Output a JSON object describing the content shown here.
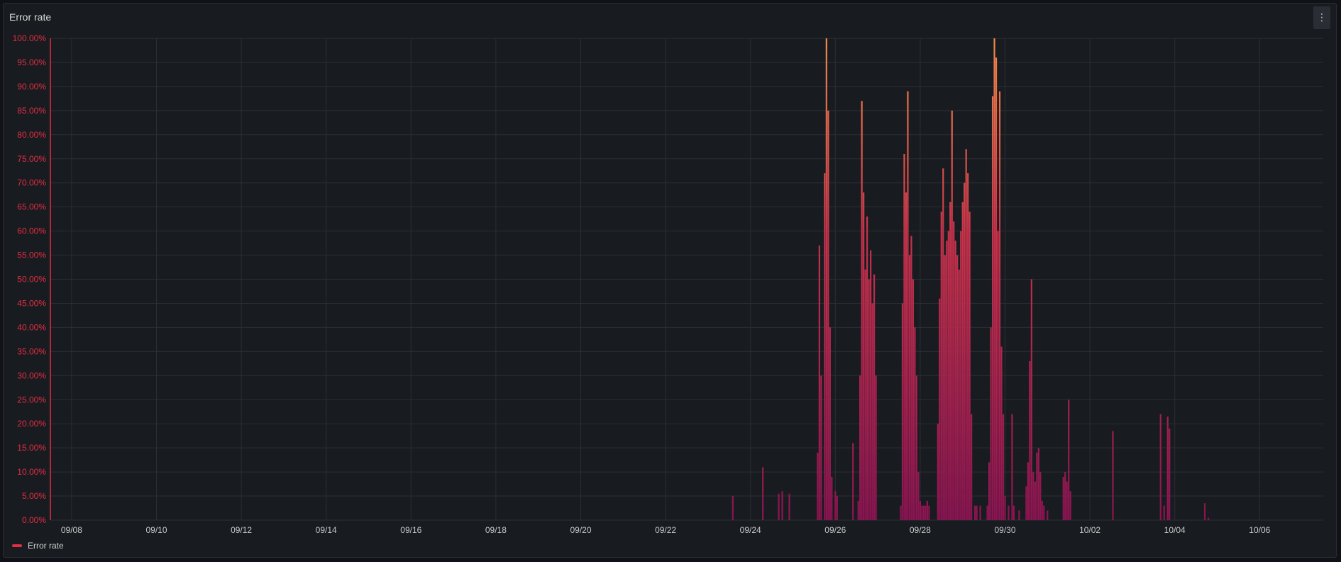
{
  "panel": {
    "title": "Error rate",
    "menu_icon": "kebab-menu-icon"
  },
  "legend": {
    "label": "Error rate",
    "color": "#e02f44"
  },
  "colors": {
    "axis_red": "#e02f44",
    "bar_low": "#8b1452",
    "bar_mid": "#c8334b",
    "bar_high": "#f58a4a",
    "grid": "#2b2f36"
  },
  "chart_data": {
    "type": "bar",
    "title": "Error rate",
    "xlabel": "",
    "ylabel": "",
    "x_unit": "days",
    "xlim": [
      "09/07 12:00",
      "10/07 12:00"
    ],
    "x_ticks": [
      "09/08",
      "09/10",
      "09/12",
      "09/14",
      "09/16",
      "09/18",
      "09/20",
      "09/22",
      "09/24",
      "09/26",
      "09/28",
      "09/30",
      "10/02",
      "10/04",
      "10/06"
    ],
    "y_ticks": [
      "0.00%",
      "5.00%",
      "10.00%",
      "15.00%",
      "20.00%",
      "25.00%",
      "30.00%",
      "35.00%",
      "40.00%",
      "45.00%",
      "50.00%",
      "55.00%",
      "60.00%",
      "65.00%",
      "70.00%",
      "75.00%",
      "80.00%",
      "85.00%",
      "90.00%",
      "95.00%",
      "100.00%"
    ],
    "ylim": [
      0,
      100
    ],
    "grid": true,
    "legend_position": "bottom-left",
    "series": [
      {
        "name": "Error rate",
        "points": [
          [
            "09/23 14:00",
            5
          ],
          [
            "09/24 07:00",
            11
          ],
          [
            "09/24 16:00",
            5.5
          ],
          [
            "09/24 18:00",
            6
          ],
          [
            "09/24 22:00",
            5.5
          ],
          [
            "09/25 14:00",
            14
          ],
          [
            "09/25 15:00",
            57
          ],
          [
            "09/25 16:00",
            30
          ],
          [
            "09/25 18:00",
            72
          ],
          [
            "09/25 19:00",
            100
          ],
          [
            "09/25 20:00",
            85
          ],
          [
            "09/25 21:00",
            40
          ],
          [
            "09/25 22:00",
            9
          ],
          [
            "09/26 00:00",
            6
          ],
          [
            "09/26 01:00",
            5
          ],
          [
            "09/26 10:00",
            16
          ],
          [
            "09/26 13:00",
            4
          ],
          [
            "09/26 14:00",
            30
          ],
          [
            "09/26 15:00",
            87
          ],
          [
            "09/26 16:00",
            68
          ],
          [
            "09/26 17:00",
            52
          ],
          [
            "09/26 18:00",
            63
          ],
          [
            "09/26 19:00",
            50
          ],
          [
            "09/26 20:00",
            56
          ],
          [
            "09/26 21:00",
            45
          ],
          [
            "09/26 22:00",
            51
          ],
          [
            "09/26 23:00",
            30
          ],
          [
            "09/27 13:00",
            3
          ],
          [
            "09/27 14:00",
            45
          ],
          [
            "09/27 15:00",
            76
          ],
          [
            "09/27 16:00",
            68
          ],
          [
            "09/27 17:00",
            89
          ],
          [
            "09/27 18:00",
            55
          ],
          [
            "09/27 19:00",
            59
          ],
          [
            "09/27 20:00",
            50
          ],
          [
            "09/27 21:00",
            40
          ],
          [
            "09/27 22:00",
            30
          ],
          [
            "09/27 23:00",
            10
          ],
          [
            "09/28 00:00",
            4
          ],
          [
            "09/28 01:00",
            3
          ],
          [
            "09/28 02:00",
            3
          ],
          [
            "09/28 03:00",
            3
          ],
          [
            "09/28 04:00",
            4
          ],
          [
            "09/28 05:00",
            3
          ],
          [
            "09/28 10:00",
            20
          ],
          [
            "09/28 11:00",
            46
          ],
          [
            "09/28 12:00",
            64
          ],
          [
            "09/28 13:00",
            73
          ],
          [
            "09/28 14:00",
            55
          ],
          [
            "09/28 15:00",
            58
          ],
          [
            "09/28 16:00",
            60
          ],
          [
            "09/28 17:00",
            66
          ],
          [
            "09/28 18:00",
            85
          ],
          [
            "09/28 19:00",
            62
          ],
          [
            "09/28 20:00",
            58
          ],
          [
            "09/28 21:00",
            55
          ],
          [
            "09/28 22:00",
            52
          ],
          [
            "09/28 23:00",
            60
          ],
          [
            "09/29 00:00",
            66
          ],
          [
            "09/29 01:00",
            70
          ],
          [
            "09/29 02:00",
            77
          ],
          [
            "09/29 03:00",
            72
          ],
          [
            "09/29 04:00",
            64
          ],
          [
            "09/29 05:00",
            22
          ],
          [
            "09/29 07:00",
            3
          ],
          [
            "09/29 08:00",
            3
          ],
          [
            "09/29 10:00",
            3
          ],
          [
            "09/29 14:00",
            3
          ],
          [
            "09/29 15:00",
            12
          ],
          [
            "09/29 16:00",
            40
          ],
          [
            "09/29 17:00",
            88
          ],
          [
            "09/29 18:00",
            100
          ],
          [
            "09/29 19:00",
            96
          ],
          [
            "09/29 20:00",
            60
          ],
          [
            "09/29 21:00",
            89
          ],
          [
            "09/29 22:00",
            36
          ],
          [
            "09/29 23:00",
            22
          ],
          [
            "09/30 00:00",
            5
          ],
          [
            "09/30 02:00",
            3
          ],
          [
            "09/30 04:00",
            22
          ],
          [
            "09/30 05:00",
            3
          ],
          [
            "09/30 08:00",
            2
          ],
          [
            "09/30 12:00",
            7
          ],
          [
            "09/30 13:00",
            12
          ],
          [
            "09/30 14:00",
            33
          ],
          [
            "09/30 15:00",
            50
          ],
          [
            "09/30 16:00",
            10
          ],
          [
            "09/30 17:00",
            8
          ],
          [
            "09/30 18:00",
            14
          ],
          [
            "09/30 19:00",
            15
          ],
          [
            "09/30 20:00",
            10
          ],
          [
            "09/30 21:00",
            4
          ],
          [
            "09/30 22:00",
            3
          ],
          [
            "10/01 00:00",
            2
          ],
          [
            "10/01 09:00",
            9
          ],
          [
            "10/01 10:00",
            10
          ],
          [
            "10/01 11:00",
            8
          ],
          [
            "10/01 12:00",
            25
          ],
          [
            "10/01 13:00",
            6
          ],
          [
            "10/02 13:00",
            18.5
          ],
          [
            "10/03 16:00",
            22
          ],
          [
            "10/03 18:00",
            3
          ],
          [
            "10/03 20:00",
            21.5
          ],
          [
            "10/03 21:00",
            19
          ],
          [
            "10/04 17:00",
            3.5
          ],
          [
            "10/04 19:00",
            0.5
          ]
        ]
      }
    ]
  }
}
